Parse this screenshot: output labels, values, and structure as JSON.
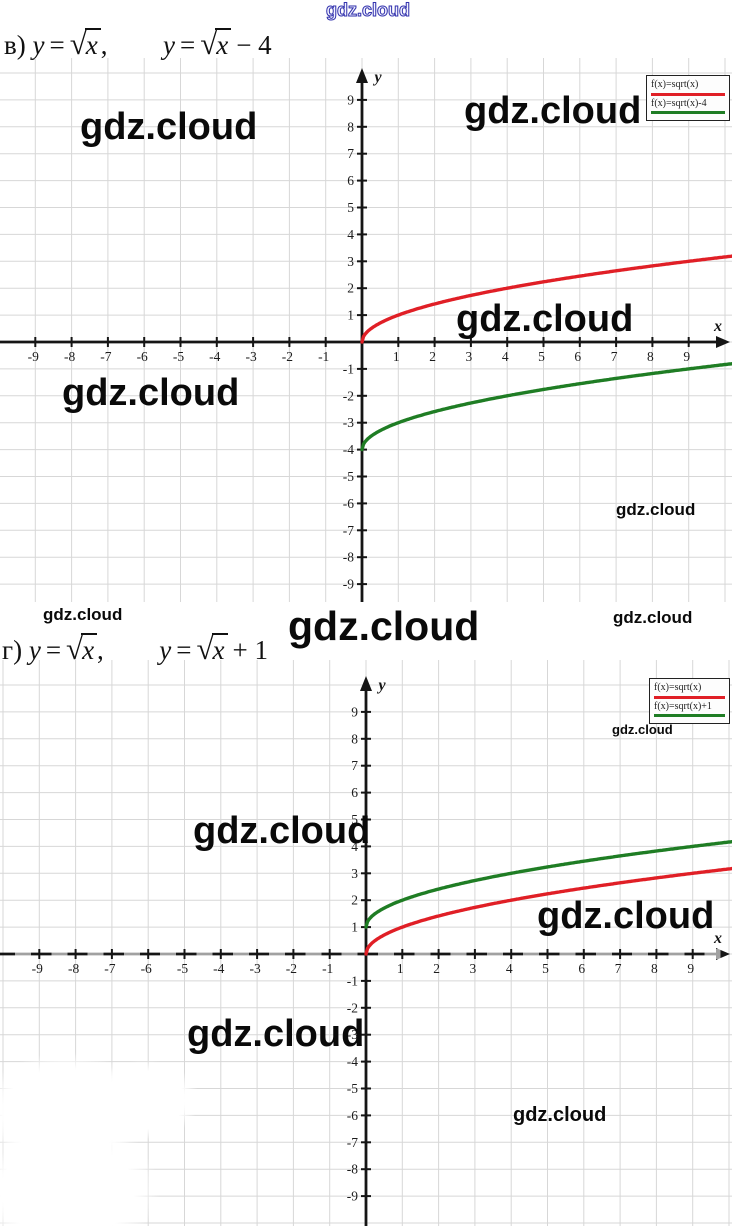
{
  "watermarks": {
    "text": "gdz.cloud"
  },
  "titles": [
    {
      "label": "в)",
      "lhs": "y",
      "eq": "=",
      "rad1": "x",
      "comma": ",",
      "lhs2": "y",
      "eq2": "=",
      "rad2": "x",
      "tail": "− 4"
    },
    {
      "label": "г)",
      "lhs": "y",
      "eq": "=",
      "rad1": "x",
      "comma": ",",
      "lhs2": "y",
      "eq2": "=",
      "rad2": "x",
      "tail": "+ 1"
    }
  ],
  "chart_data": [
    {
      "type": "line",
      "title": "в) y = √x,  y = √x − 4",
      "xlabel": "x",
      "ylabel": "y",
      "xlim": [
        -10.1,
        10.2
      ],
      "ylim": [
        -10,
        10
      ],
      "grid": true,
      "grid_color": "#d7d7d7",
      "axis_color": "#151515",
      "x_ticks": [
        -9,
        -8,
        -7,
        -6,
        -5,
        -4,
        -3,
        -2,
        -1,
        1,
        2,
        3,
        4,
        5,
        6,
        7,
        8,
        9
      ],
      "y_ticks": [
        9,
        8,
        7,
        6,
        5,
        4,
        3,
        2,
        1,
        -1,
        -2,
        -3,
        -4,
        -5,
        -6,
        -7,
        -8,
        -9
      ],
      "legend_position": "top-right",
      "legend": [
        {
          "label": "f(x)=sqrt(x)",
          "color": "#e01f26"
        },
        {
          "label": "f(x)=sqrt(x)-4",
          "color": "#1f7d24"
        }
      ],
      "series": [
        {
          "name": "f(x)=sqrt(x)",
          "fn": "sqrt",
          "offset": 0,
          "color": "#e01f26",
          "x": [
            0,
            1,
            2,
            3,
            4,
            5,
            6,
            7,
            8,
            9,
            10
          ],
          "y": [
            0,
            1,
            1.41,
            1.73,
            2,
            2.24,
            2.45,
            2.65,
            2.83,
            3,
            3.16
          ]
        },
        {
          "name": "f(x)=sqrt(x)-4",
          "fn": "sqrt",
          "offset": -4,
          "color": "#1f7d24",
          "x": [
            0,
            1,
            2,
            3,
            4,
            5,
            6,
            7,
            8,
            9,
            10
          ],
          "y": [
            -4,
            -3,
            -2.59,
            -2.27,
            -2,
            -1.76,
            -1.55,
            -1.35,
            -1.17,
            -1,
            -0.84
          ]
        }
      ]
    },
    {
      "type": "line",
      "title": "г) y = √x,  y = √x + 1",
      "xlabel": "x",
      "ylabel": "y",
      "xlim": [
        -10.1,
        10.2
      ],
      "ylim": [
        -10,
        10
      ],
      "grid": true,
      "grid_color": "#d7d7d7",
      "axis_color": "#151515",
      "x_ticks": [
        -9,
        -8,
        -7,
        -6,
        -5,
        -4,
        -3,
        -2,
        -1,
        1,
        2,
        3,
        4,
        5,
        6,
        7,
        8,
        9
      ],
      "y_ticks": [
        9,
        8,
        7,
        6,
        5,
        4,
        3,
        2,
        1,
        -1,
        -2,
        -3,
        -4,
        -5,
        -6,
        -7,
        -8,
        -9
      ],
      "legend_position": "top-right",
      "legend": [
        {
          "label": "f(x)=sqrt(x)",
          "color": "#e01f26"
        },
        {
          "label": "f(x)=sqrt(x)+1",
          "color": "#1f7d24"
        }
      ],
      "series": [
        {
          "name": "f(x)=sqrt(x)",
          "fn": "sqrt",
          "offset": 0,
          "color": "#e01f26",
          "x": [
            0,
            1,
            2,
            3,
            4,
            5,
            6,
            7,
            8,
            9,
            10
          ],
          "y": [
            0,
            1,
            1.41,
            1.73,
            2,
            2.24,
            2.45,
            2.65,
            2.83,
            3,
            3.16
          ]
        },
        {
          "name": "f(x)=sqrt(x)+1",
          "fn": "sqrt",
          "offset": 1,
          "color": "#1f7d24",
          "x": [
            0,
            1,
            2,
            3,
            4,
            5,
            6,
            7,
            8,
            9,
            10
          ],
          "y": [
            1,
            2,
            2.41,
            2.73,
            3,
            3.24,
            3.45,
            3.65,
            3.83,
            4,
            4.16
          ]
        }
      ]
    }
  ]
}
